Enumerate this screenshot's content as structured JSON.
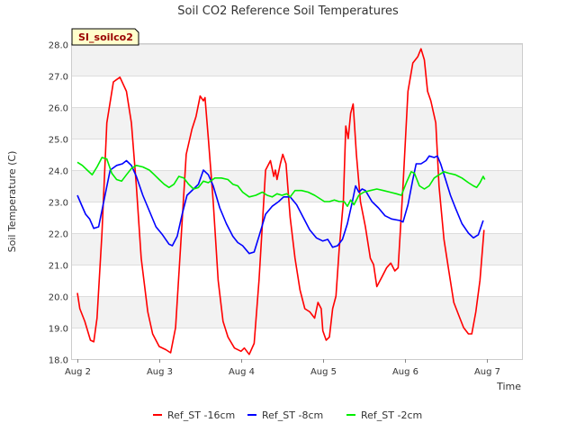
{
  "chart_data": {
    "type": "line",
    "title": "Soil CO2 Reference Soil Temperatures",
    "xlabel": "Time",
    "ylabel": "Soil Temperature (C)",
    "site_label": "SI_soilco2",
    "xlim": [
      0,
      5.5
    ],
    "ylim": [
      18.0,
      28.0
    ],
    "x_ticks": [
      {
        "value": 0,
        "label": "Aug 2"
      },
      {
        "value": 1,
        "label": "Aug 3"
      },
      {
        "value": 2,
        "label": "Aug 4"
      },
      {
        "value": 3,
        "label": "Aug 5"
      },
      {
        "value": 4,
        "label": "Aug 6"
      },
      {
        "value": 5,
        "label": "Aug 7"
      }
    ],
    "y_ticks": [
      "18.0",
      "19.0",
      "20.0",
      "21.0",
      "22.0",
      "23.0",
      "24.0",
      "25.0",
      "26.0",
      "27.0",
      "28.0"
    ],
    "grid": true,
    "legend_position": "bottom",
    "series": [
      {
        "name": "Ref_ST -16cm",
        "color": "#ff0000",
        "points": [
          [
            0.0,
            20.1
          ],
          [
            0.03,
            19.6
          ],
          [
            0.09,
            19.2
          ],
          [
            0.16,
            18.6
          ],
          [
            0.2,
            18.55
          ],
          [
            0.24,
            19.3
          ],
          [
            0.3,
            22.0
          ],
          [
            0.36,
            25.5
          ],
          [
            0.44,
            26.8
          ],
          [
            0.52,
            26.95
          ],
          [
            0.6,
            26.5
          ],
          [
            0.66,
            25.5
          ],
          [
            0.72,
            23.5
          ],
          [
            0.78,
            21.2
          ],
          [
            0.86,
            19.5
          ],
          [
            0.92,
            18.8
          ],
          [
            1.0,
            18.4
          ],
          [
            1.08,
            18.3
          ],
          [
            1.14,
            18.2
          ],
          [
            1.2,
            19.0
          ],
          [
            1.26,
            21.5
          ],
          [
            1.33,
            24.5
          ],
          [
            1.4,
            25.3
          ],
          [
            1.45,
            25.7
          ],
          [
            1.5,
            26.35
          ],
          [
            1.54,
            26.2
          ],
          [
            1.56,
            26.3
          ],
          [
            1.6,
            25.0
          ],
          [
            1.66,
            23.0
          ],
          [
            1.72,
            20.5
          ],
          [
            1.78,
            19.2
          ],
          [
            1.84,
            18.7
          ],
          [
            1.92,
            18.35
          ],
          [
            2.0,
            18.25
          ],
          [
            2.04,
            18.35
          ],
          [
            2.1,
            18.15
          ],
          [
            2.16,
            18.5
          ],
          [
            2.22,
            20.5
          ],
          [
            2.3,
            24.0
          ],
          [
            2.36,
            24.3
          ],
          [
            2.4,
            23.8
          ],
          [
            2.42,
            24.0
          ],
          [
            2.44,
            23.7
          ],
          [
            2.48,
            24.2
          ],
          [
            2.51,
            24.5
          ],
          [
            2.55,
            24.2
          ],
          [
            2.6,
            22.5
          ],
          [
            2.66,
            21.2
          ],
          [
            2.72,
            20.2
          ],
          [
            2.78,
            19.6
          ],
          [
            2.84,
            19.5
          ],
          [
            2.9,
            19.3
          ],
          [
            2.94,
            19.8
          ],
          [
            2.98,
            19.6
          ],
          [
            3.0,
            18.9
          ],
          [
            3.04,
            18.6
          ],
          [
            3.08,
            18.7
          ],
          [
            3.12,
            19.6
          ],
          [
            3.16,
            20.0
          ],
          [
            3.2,
            21.5
          ],
          [
            3.25,
            23.0
          ],
          [
            3.28,
            25.4
          ],
          [
            3.31,
            25.0
          ],
          [
            3.34,
            25.8
          ],
          [
            3.37,
            26.1
          ],
          [
            3.41,
            24.5
          ],
          [
            3.46,
            23.0
          ],
          [
            3.52,
            22.2
          ],
          [
            3.58,
            21.2
          ],
          [
            3.62,
            21.0
          ],
          [
            3.66,
            20.3
          ],
          [
            3.72,
            20.6
          ],
          [
            3.78,
            20.9
          ],
          [
            3.83,
            21.05
          ],
          [
            3.88,
            20.8
          ],
          [
            3.92,
            20.9
          ],
          [
            3.98,
            23.5
          ],
          [
            4.04,
            26.5
          ],
          [
            4.1,
            27.4
          ],
          [
            4.16,
            27.6
          ],
          [
            4.2,
            27.85
          ],
          [
            4.24,
            27.5
          ],
          [
            4.28,
            26.5
          ],
          [
            4.32,
            26.2
          ],
          [
            4.38,
            25.5
          ],
          [
            4.42,
            23.5
          ],
          [
            4.48,
            21.8
          ],
          [
            4.54,
            20.8
          ],
          [
            4.6,
            19.8
          ],
          [
            4.66,
            19.4
          ],
          [
            4.72,
            19.0
          ],
          [
            4.78,
            18.8
          ],
          [
            4.82,
            18.8
          ],
          [
            4.87,
            19.5
          ],
          [
            4.92,
            20.5
          ],
          [
            4.97,
            22.1
          ]
        ]
      },
      {
        "name": "Ref_ST -8cm",
        "color": "#0000ff",
        "points": [
          [
            0.0,
            23.2
          ],
          [
            0.05,
            22.9
          ],
          [
            0.1,
            22.6
          ],
          [
            0.15,
            22.45
          ],
          [
            0.2,
            22.15
          ],
          [
            0.26,
            22.2
          ],
          [
            0.33,
            23.1
          ],
          [
            0.4,
            24.0
          ],
          [
            0.48,
            24.15
          ],
          [
            0.55,
            24.2
          ],
          [
            0.6,
            24.3
          ],
          [
            0.66,
            24.15
          ],
          [
            0.72,
            23.8
          ],
          [
            0.8,
            23.2
          ],
          [
            0.88,
            22.7
          ],
          [
            0.96,
            22.2
          ],
          [
            1.04,
            21.95
          ],
          [
            1.12,
            21.65
          ],
          [
            1.16,
            21.6
          ],
          [
            1.22,
            21.9
          ],
          [
            1.28,
            22.6
          ],
          [
            1.34,
            23.2
          ],
          [
            1.42,
            23.4
          ],
          [
            1.48,
            23.55
          ],
          [
            1.54,
            24.0
          ],
          [
            1.6,
            23.85
          ],
          [
            1.66,
            23.5
          ],
          [
            1.74,
            22.8
          ],
          [
            1.82,
            22.3
          ],
          [
            1.9,
            21.9
          ],
          [
            1.96,
            21.7
          ],
          [
            2.02,
            21.6
          ],
          [
            2.1,
            21.35
          ],
          [
            2.16,
            21.4
          ],
          [
            2.22,
            21.9
          ],
          [
            2.3,
            22.6
          ],
          [
            2.38,
            22.85
          ],
          [
            2.46,
            23.0
          ],
          [
            2.52,
            23.15
          ],
          [
            2.6,
            23.15
          ],
          [
            2.68,
            22.9
          ],
          [
            2.76,
            22.5
          ],
          [
            2.84,
            22.1
          ],
          [
            2.92,
            21.85
          ],
          [
            3.0,
            21.75
          ],
          [
            3.06,
            21.8
          ],
          [
            3.12,
            21.55
          ],
          [
            3.18,
            21.6
          ],
          [
            3.24,
            21.8
          ],
          [
            3.3,
            22.3
          ],
          [
            3.36,
            23.0
          ],
          [
            3.4,
            23.5
          ],
          [
            3.44,
            23.3
          ],
          [
            3.48,
            23.4
          ],
          [
            3.52,
            23.35
          ],
          [
            3.6,
            23.0
          ],
          [
            3.68,
            22.8
          ],
          [
            3.76,
            22.55
          ],
          [
            3.84,
            22.45
          ],
          [
            3.94,
            22.4
          ],
          [
            3.98,
            22.35
          ],
          [
            4.04,
            22.9
          ],
          [
            4.1,
            23.7
          ],
          [
            4.14,
            24.2
          ],
          [
            4.2,
            24.2
          ],
          [
            4.26,
            24.3
          ],
          [
            4.3,
            24.45
          ],
          [
            4.36,
            24.4
          ],
          [
            4.4,
            24.45
          ],
          [
            4.44,
            24.2
          ],
          [
            4.5,
            23.7
          ],
          [
            4.56,
            23.2
          ],
          [
            4.62,
            22.8
          ],
          [
            4.7,
            22.3
          ],
          [
            4.78,
            22.0
          ],
          [
            4.84,
            21.85
          ],
          [
            4.9,
            21.95
          ],
          [
            4.96,
            22.4
          ]
        ]
      },
      {
        "name": "Ref_ST -2cm",
        "color": "#00ee00",
        "points": [
          [
            0.0,
            24.25
          ],
          [
            0.06,
            24.15
          ],
          [
            0.12,
            24.0
          ],
          [
            0.18,
            23.85
          ],
          [
            0.24,
            24.1
          ],
          [
            0.3,
            24.4
          ],
          [
            0.36,
            24.35
          ],
          [
            0.42,
            23.9
          ],
          [
            0.48,
            23.7
          ],
          [
            0.54,
            23.65
          ],
          [
            0.6,
            23.85
          ],
          [
            0.66,
            24.05
          ],
          [
            0.72,
            24.15
          ],
          [
            0.8,
            24.1
          ],
          [
            0.88,
            24.0
          ],
          [
            0.94,
            23.85
          ],
          [
            1.0,
            23.7
          ],
          [
            1.06,
            23.55
          ],
          [
            1.12,
            23.45
          ],
          [
            1.18,
            23.55
          ],
          [
            1.24,
            23.8
          ],
          [
            1.3,
            23.75
          ],
          [
            1.36,
            23.55
          ],
          [
            1.42,
            23.4
          ],
          [
            1.48,
            23.45
          ],
          [
            1.54,
            23.65
          ],
          [
            1.6,
            23.6
          ],
          [
            1.68,
            23.75
          ],
          [
            1.76,
            23.75
          ],
          [
            1.84,
            23.7
          ],
          [
            1.9,
            23.55
          ],
          [
            1.96,
            23.5
          ],
          [
            2.02,
            23.3
          ],
          [
            2.1,
            23.15
          ],
          [
            2.18,
            23.2
          ],
          [
            2.26,
            23.3
          ],
          [
            2.32,
            23.2
          ],
          [
            2.38,
            23.15
          ],
          [
            2.44,
            23.25
          ],
          [
            2.5,
            23.2
          ],
          [
            2.56,
            23.25
          ],
          [
            2.6,
            23.15
          ],
          [
            2.66,
            23.35
          ],
          [
            2.74,
            23.35
          ],
          [
            2.82,
            23.3
          ],
          [
            2.9,
            23.2
          ],
          [
            2.96,
            23.1
          ],
          [
            3.02,
            23.0
          ],
          [
            3.08,
            23.0
          ],
          [
            3.14,
            23.05
          ],
          [
            3.2,
            23.0
          ],
          [
            3.26,
            23.0
          ],
          [
            3.3,
            22.85
          ],
          [
            3.34,
            23.05
          ],
          [
            3.38,
            22.9
          ],
          [
            3.44,
            23.2
          ],
          [
            3.5,
            23.3
          ],
          [
            3.58,
            23.35
          ],
          [
            3.66,
            23.4
          ],
          [
            3.74,
            23.35
          ],
          [
            3.82,
            23.3
          ],
          [
            3.9,
            23.25
          ],
          [
            3.96,
            23.2
          ],
          [
            4.02,
            23.6
          ],
          [
            4.08,
            23.95
          ],
          [
            4.12,
            23.9
          ],
          [
            4.18,
            23.5
          ],
          [
            4.24,
            23.4
          ],
          [
            4.3,
            23.5
          ],
          [
            4.36,
            23.75
          ],
          [
            4.42,
            23.85
          ],
          [
            4.48,
            23.95
          ],
          [
            4.54,
            23.9
          ],
          [
            4.62,
            23.85
          ],
          [
            4.7,
            23.75
          ],
          [
            4.78,
            23.6
          ],
          [
            4.84,
            23.5
          ],
          [
            4.88,
            23.45
          ],
          [
            4.92,
            23.6
          ],
          [
            4.96,
            23.8
          ],
          [
            4.98,
            23.7
          ]
        ]
      }
    ]
  }
}
